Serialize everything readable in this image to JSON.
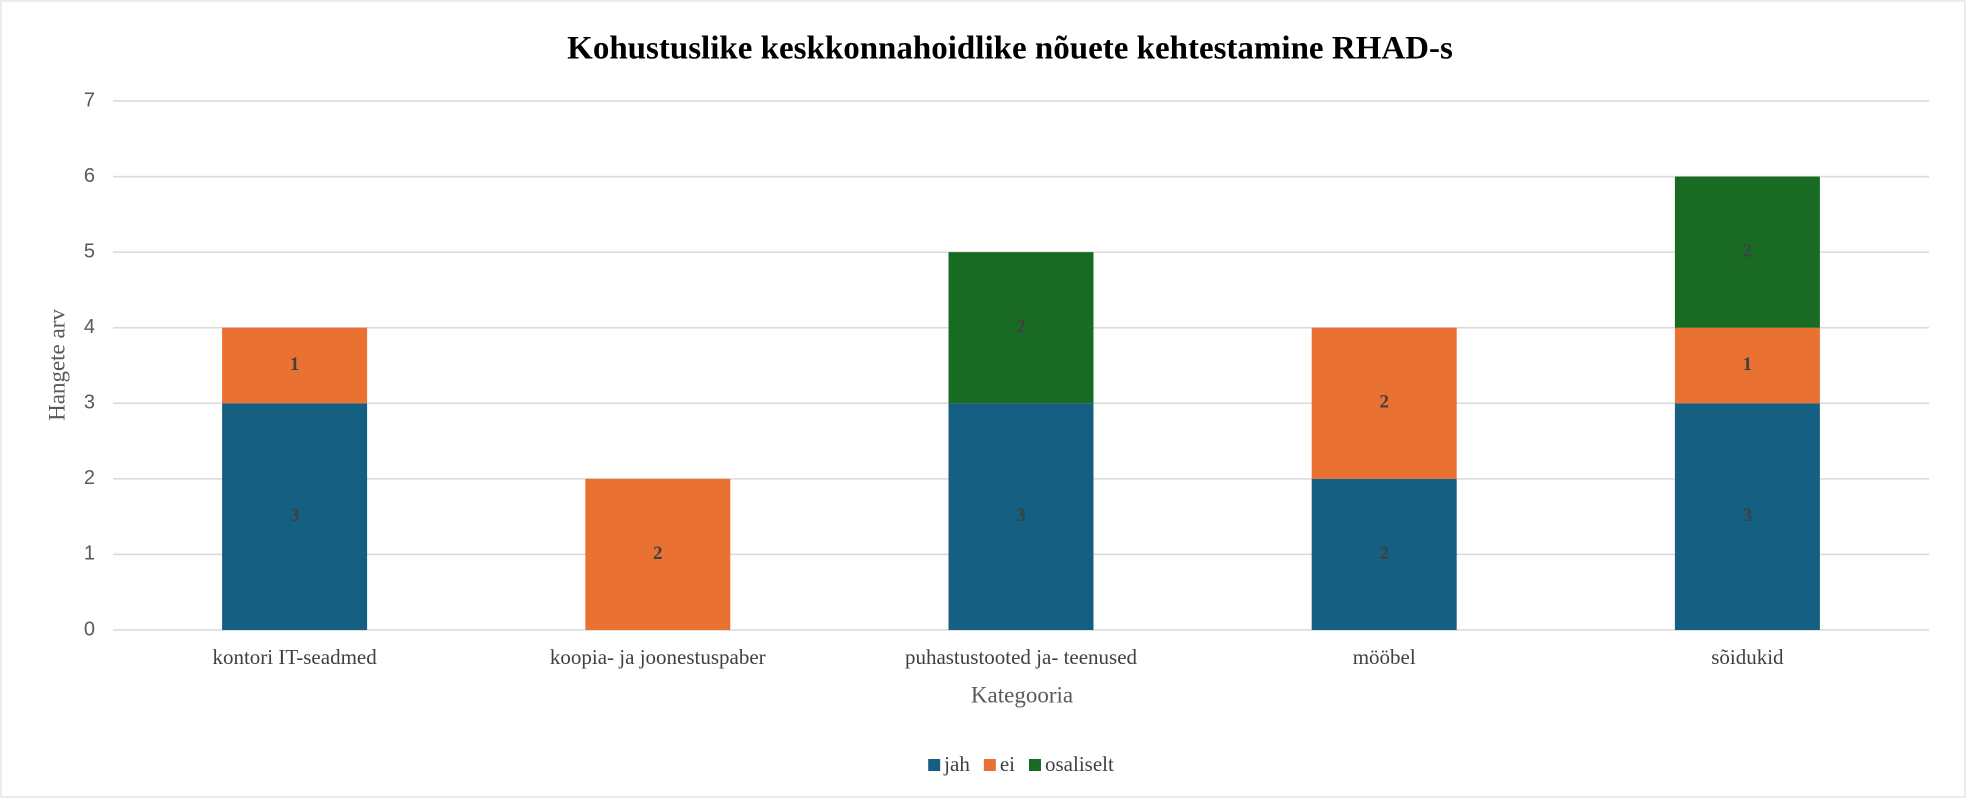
{
  "chart_data": {
    "type": "stacked_bar",
    "title": "Kohustuslike keskkonnahoidlike nõuete  kehtestamine RHAD-s",
    "x_label": "Kategooria",
    "y_label": "Hangete arv",
    "categories": [
      "kontori IT-seadmed",
      "koopia- ja joonestuspaber",
      "puhastustooted ja- teenused",
      "mööbel",
      "sõidukid"
    ],
    "series": [
      {
        "name": "jah",
        "color": "#156082",
        "values": [
          3,
          null,
          3,
          2,
          3
        ]
      },
      {
        "name": "ei",
        "color": "#e97132",
        "values": [
          1,
          2,
          null,
          2,
          1
        ]
      },
      {
        "name": "osaliselt",
        "color": "#196b24",
        "values": [
          null,
          null,
          2,
          null,
          2
        ]
      }
    ],
    "ylim": [
      0,
      7
    ],
    "yticks": [
      0,
      1,
      2,
      3,
      4,
      5,
      6,
      7
    ],
    "grid": true,
    "legend": "bottom"
  }
}
